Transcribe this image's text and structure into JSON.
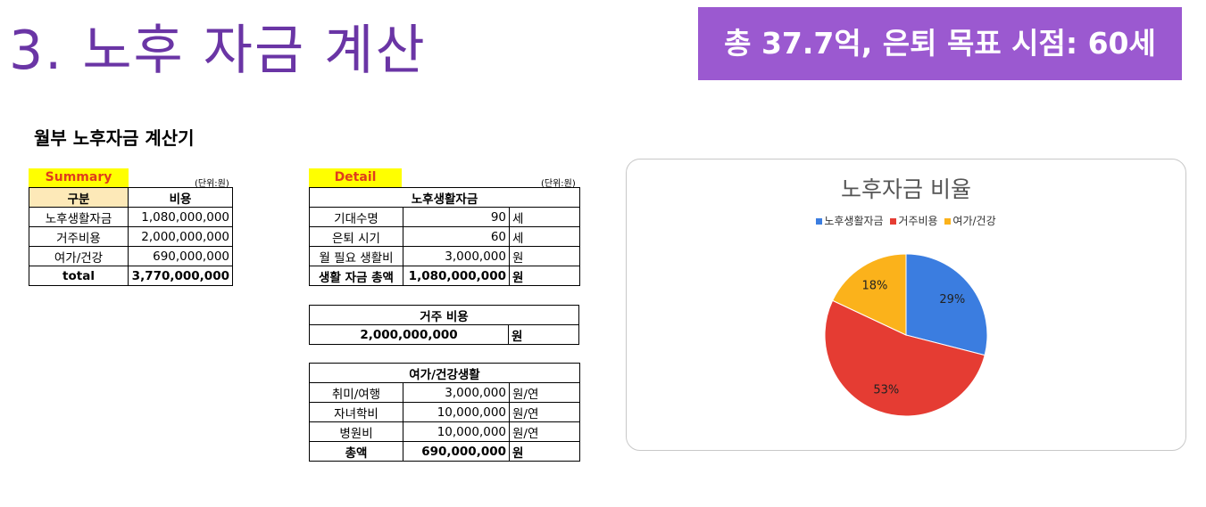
{
  "title": "3. 노후 자금 계산",
  "banner": "총 37.7억, 은퇴 목표 시점: 60세",
  "subtitle": "월부 노후자금 계산기",
  "summary": {
    "tag": "Summary",
    "unit": "(단위:원)",
    "headers": [
      "구분",
      "비용"
    ],
    "rows": [
      [
        "노후생활자금",
        "1,080,000,000"
      ],
      [
        "거주비용",
        "2,000,000,000"
      ],
      [
        "여가/건강",
        "690,000,000"
      ],
      [
        "total",
        "3,770,000,000"
      ]
    ]
  },
  "detail": {
    "tag": "Detail",
    "unit": "(단위:원)",
    "living": {
      "header": "노후생활자금",
      "rows": [
        [
          "기대수명",
          "90",
          "세"
        ],
        [
          "은퇴 시기",
          "60",
          "세"
        ],
        [
          "월 필요 생활비",
          "3,000,000",
          "원"
        ],
        [
          "생활 자금 총액",
          "1,080,000,000",
          "원"
        ]
      ]
    },
    "housing": {
      "header": "거주 비용",
      "value": "2,000,000,000",
      "unit": "원"
    },
    "leisure": {
      "header": "여가/건강생활",
      "rows": [
        [
          "취미/여행",
          "3,000,000",
          "원/연"
        ],
        [
          "자녀학비",
          "10,000,000",
          "원/연"
        ],
        [
          "병원비",
          "10,000,000",
          "원/연"
        ],
        [
          "총액",
          "690,000,000",
          "원"
        ]
      ]
    }
  },
  "chart_data": {
    "type": "pie",
    "title": "노후자금 비율",
    "categories": [
      "노후생활자금",
      "거주비용",
      "여가/건강"
    ],
    "values": [
      29,
      53,
      18
    ],
    "labels": [
      "29%",
      "53%",
      "18%"
    ],
    "colors": [
      "#3b7de0",
      "#e53c33",
      "#fbb21b"
    ],
    "legend": "top"
  }
}
